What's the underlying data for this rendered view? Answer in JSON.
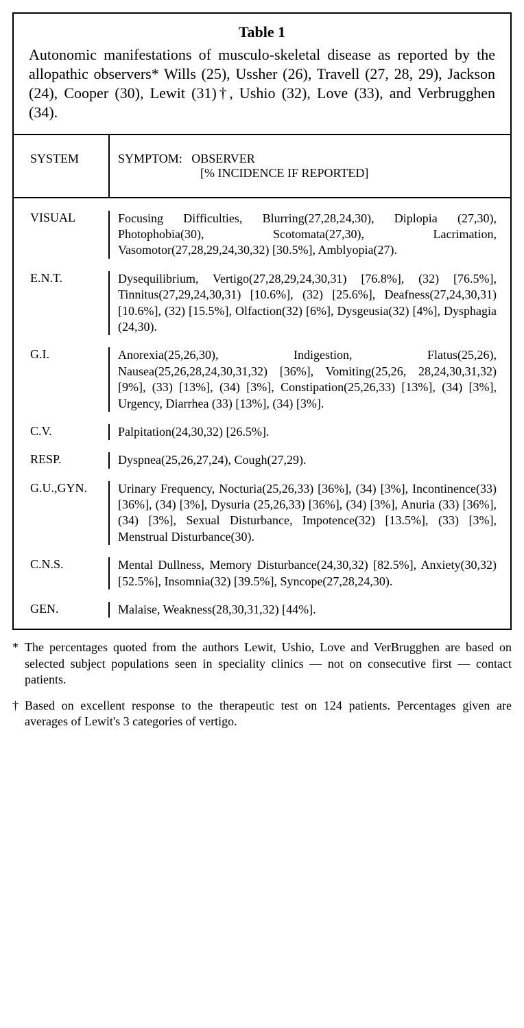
{
  "table": {
    "title": "Table 1",
    "caption": "Autonomic manifestations of musculo-skeletal disease as reported by the allopathic observers* Wills (25), Ussher (26), Travell (27, 28, 29), Jackson (24), Cooper (30), Lewit (31)†, Ushio (32), Love (33), and Verbrugghen (34).",
    "header": {
      "system": "SYSTEM",
      "symptom_label": "SYMPTOM:",
      "observer_label": "OBSERVER",
      "incidence_label": "[% INCIDENCE IF REPORTED]"
    },
    "rows": [
      {
        "system": "VISUAL",
        "symptom": "Focusing Difficulties, Blurring(27,28,24,30), Diplopia (27,30), Photophobia(30), Scotomata(27,30), Lacrimation, Vasomotor(27,28,29,24,30,32) [30.5%], Amblyopia(27)."
      },
      {
        "system": "E.N.T.",
        "symptom": "Dysequilibrium, Vertigo(27,28,29,24,30,31) [76.8%], (32) [76.5%], Tinnitus(27,29,24,30,31) [10.6%], (32) [25.6%], Deafness(27,24,30,31) [10.6%], (32) [15.5%], Olfaction(32) [6%], Dysgeusia(32) [4%], Dysphagia (24,30)."
      },
      {
        "system": "G.I.",
        "symptom": "Anorexia(25,26,30), Indigestion, Flatus(25,26), Nausea(25,26,28,24,30,31,32) [36%], Vomiting(25,26, 28,24,30,31,32) [9%], (33) [13%], (34) [3%], Constipation(25,26,33) [13%], (34) [3%], Urgency, Diarrhea (33) [13%], (34) [3%]."
      },
      {
        "system": "C.V.",
        "symptom": "Palpitation(24,30,32) [26.5%]."
      },
      {
        "system": "RESP.",
        "symptom": "Dyspnea(25,26,27,24), Cough(27,29)."
      },
      {
        "system": "G.U.,GYN.",
        "symptom": "Urinary Frequency, Nocturia(25,26,33) [36%], (34) [3%], Incontinence(33) [36%], (34) [3%], Dysuria (25,26,33) [36%], (34) [3%], Anuria (33) [36%], (34) [3%], Sexual Disturbance, Impotence(32) [13.5%], (33) [3%], Menstrual Disturbance(30)."
      },
      {
        "system": "C.N.S.",
        "symptom": "Mental Dullness, Memory Disturbance(24,30,32) [82.5%], Anxiety(30,32) [52.5%], Insomnia(32) [39.5%], Syncope(27,28,24,30)."
      },
      {
        "system": "GEN.",
        "symptom": "Malaise, Weakness(28,30,31,32) [44%]."
      }
    ]
  },
  "footnotes": [
    {
      "marker": "*",
      "text": "The percentages quoted from the authors Lewit, Ushio, Love and VerBrugghen are based on selected subject populations seen in speciality clinics — not on consecutive first — contact patients."
    },
    {
      "marker": "†",
      "text": "Based on excellent response to the therapeutic test on 124 patients. Percentages given are averages of Lewit's 3 categories of vertigo."
    }
  ],
  "styling": {
    "type": "table",
    "background_color": "#ffffff",
    "text_color": "#000000",
    "border_color": "#000000",
    "border_width": 2,
    "title_fontsize": 22,
    "title_fontweight": "bold",
    "caption_fontsize": 22,
    "header_fontsize": 18,
    "body_fontsize": 18,
    "footnote_fontsize": 18,
    "font_family": "Georgia, Times New Roman, serif",
    "system_column_width": 140,
    "line_height": 1.3,
    "text_align": "justify"
  }
}
